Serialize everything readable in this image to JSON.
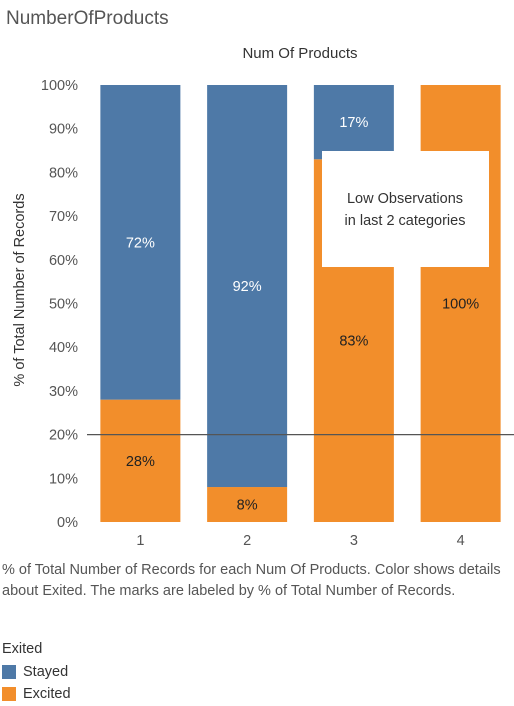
{
  "sheet_title": "NumberOfProducts",
  "caption": "% of Total Number of Records for each Num Of Products.  Color shows details about Exited.  The marks are labeled by % of Total Number of Records.",
  "legend": {
    "title": "Exited",
    "items": [
      {
        "label": "Stayed",
        "color": "#4e79a7"
      },
      {
        "label": "Excited",
        "color": "#f28e2b"
      }
    ]
  },
  "annotation": {
    "lines": [
      "Low Observations",
      "in last 2 categories"
    ]
  },
  "chart_data": {
    "type": "bar",
    "stacked": true,
    "title": "Num Of Products",
    "xlabel": "",
    "ylabel": "% of Total Number of Records",
    "categories": [
      "1",
      "2",
      "3",
      "4"
    ],
    "series": [
      {
        "name": "Stayed",
        "color": "#4e79a7",
        "values": [
          72,
          92,
          17,
          0
        ],
        "labels": [
          "72%",
          "92%",
          "17%",
          ""
        ]
      },
      {
        "name": "Excited",
        "color": "#f28e2b",
        "values": [
          28,
          8,
          83,
          100
        ],
        "labels": [
          "28%",
          "8%",
          "83%",
          "100%"
        ]
      }
    ],
    "ylim": [
      0,
      100
    ],
    "yticks": [
      "0%",
      "10%",
      "20%",
      "30%",
      "40%",
      "50%",
      "60%",
      "70%",
      "80%",
      "90%",
      "100%"
    ],
    "reference_line": 20,
    "grid": false
  }
}
